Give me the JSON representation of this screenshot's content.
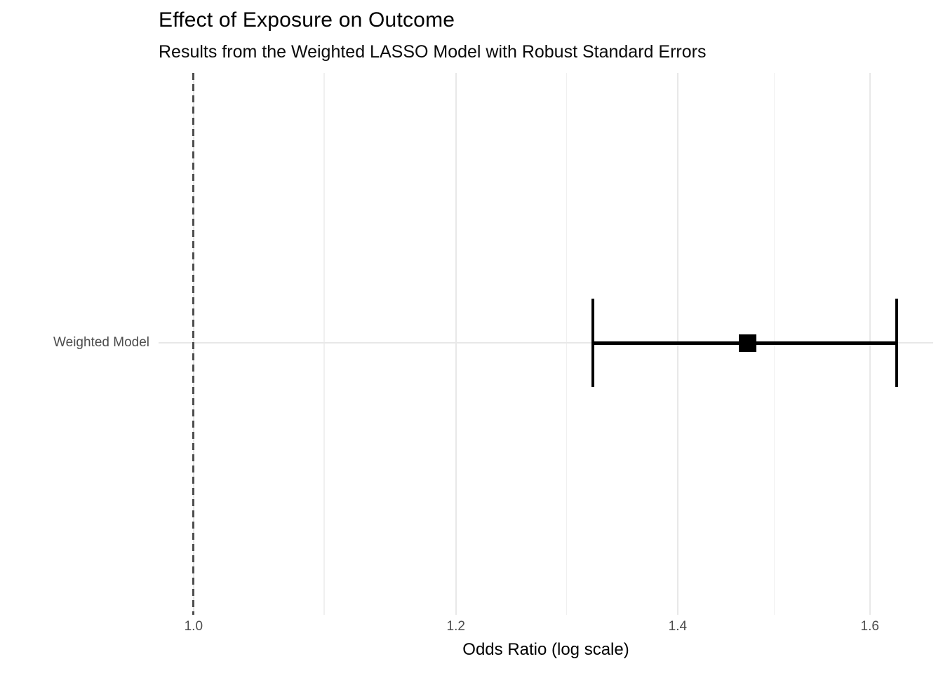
{
  "chart_data": {
    "type": "forest",
    "title": "Effect of Exposure on Outcome",
    "subtitle": "Results from the Weighted LASSO Model with Robust Standard Errors",
    "xlabel": "Odds Ratio (log scale)",
    "ylabel": "",
    "x_scale": "log",
    "xlim": [
      0.976,
      1.672
    ],
    "x_ticks": [
      1.0,
      1.2,
      1.4,
      1.6
    ],
    "x_tick_labels": [
      "1.0",
      "1.2",
      "1.4",
      "1.6"
    ],
    "x_minor_gridlines": [
      1.095,
      1.296,
      1.497
    ],
    "reference_line": 1.0,
    "grid": "major-and-minor",
    "legend": "none",
    "rows": [
      {
        "label": "Weighted Model",
        "estimate": 1.47,
        "ci_low": 1.32,
        "ci_high": 1.63
      }
    ],
    "colors": {
      "estimate_marker": "#000000",
      "ci_bar": "#000000",
      "reference_line": "#4d4d4d",
      "grid_major": "#e8e8e8",
      "grid_minor": "#f0f0f0",
      "axis_text": "#4d4d4d",
      "title_text": "#000000",
      "background": "#ffffff"
    }
  }
}
